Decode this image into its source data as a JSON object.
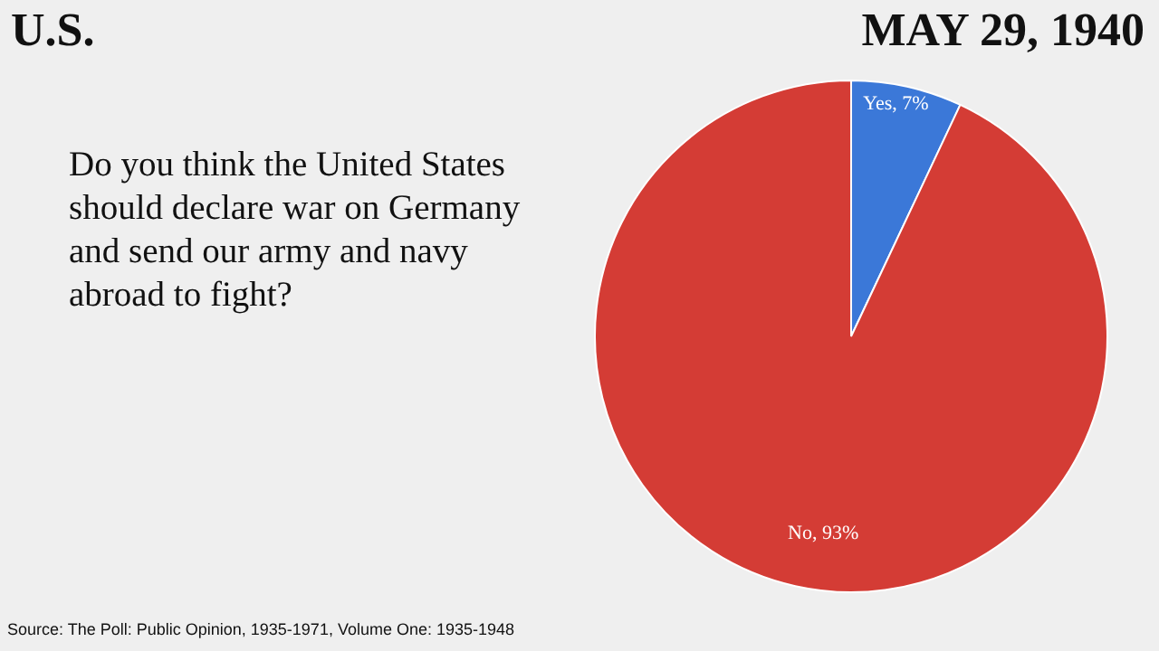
{
  "chart_data": {
    "type": "pie",
    "title": "U.S.",
    "subtitle": "MAY 29, 1940",
    "categories": [
      "Yes",
      "No"
    ],
    "values": [
      7,
      93
    ],
    "colors": [
      "#3b78d8",
      "#d43c35"
    ],
    "value_labels": [
      "7%",
      "93%"
    ],
    "legend": false,
    "annotations": [
      "Do you think the United States should declare war on Germany and send our army and navy abroad to fight?",
      "Source: The Poll: Public Opinion, 1935-1971, Volume One: 1935-1948"
    ]
  }
}
